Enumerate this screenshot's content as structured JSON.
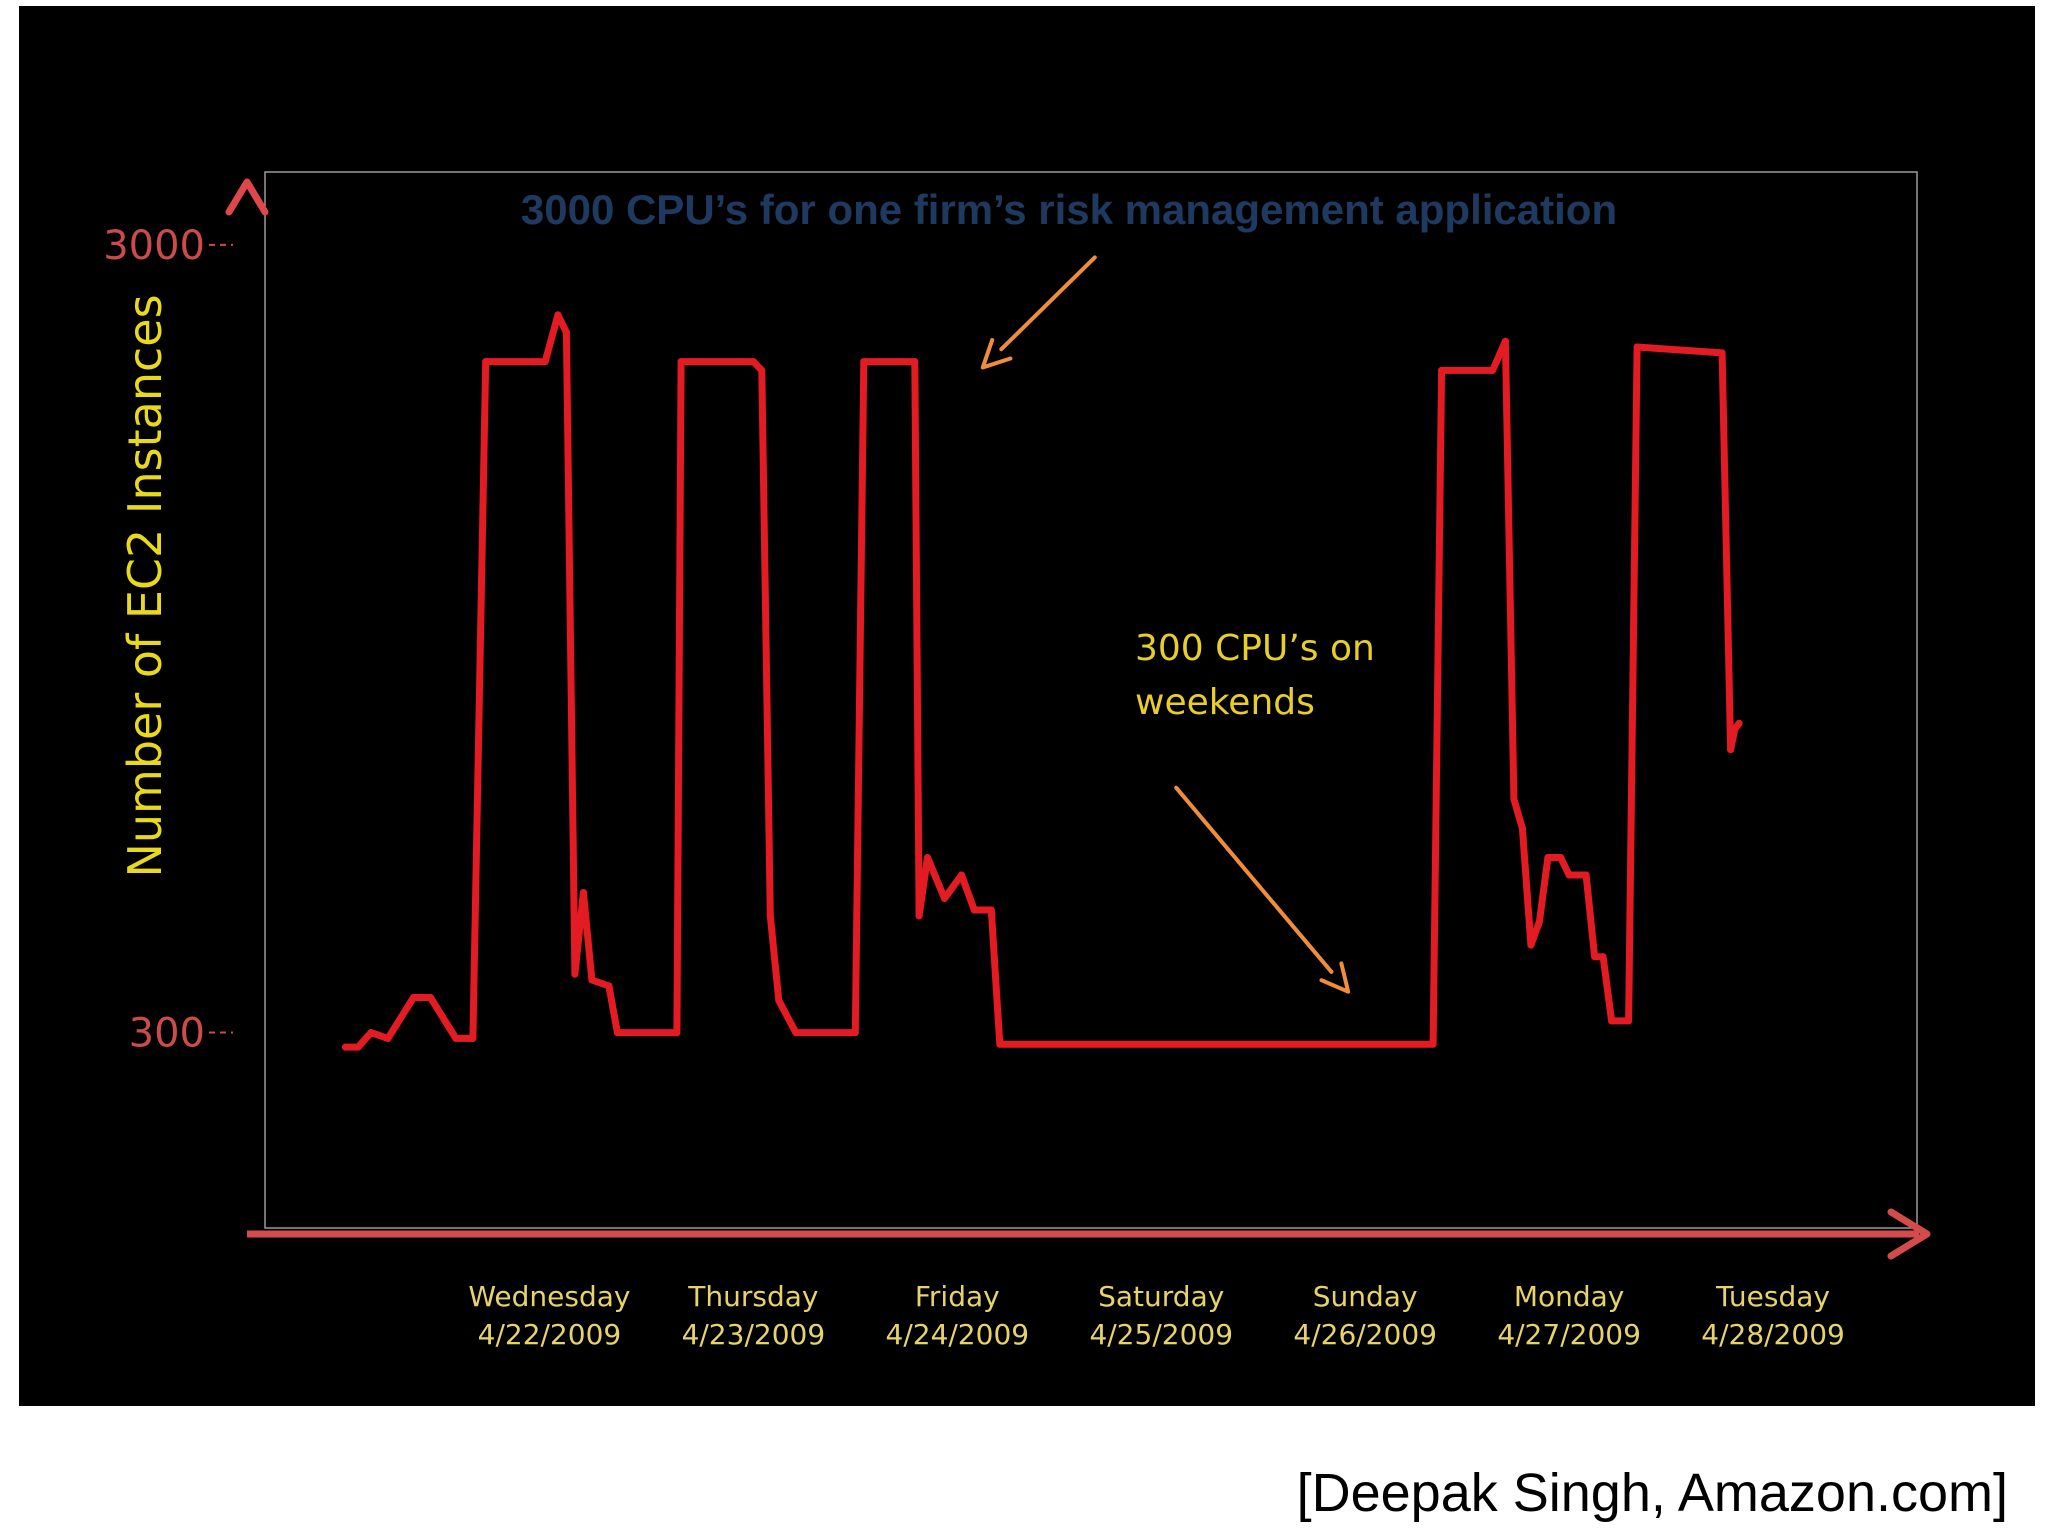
{
  "chart_data": {
    "type": "line",
    "title": "3000 CPU’s for one firm’s risk management application",
    "ylabel": "Number of EC2 Instances",
    "xlabel": "",
    "x_ticks": [
      {
        "day": "Wednesday",
        "date": "4/22/2009"
      },
      {
        "day": "Thursday",
        "date": "4/23/2009"
      },
      {
        "day": "Friday",
        "date": "4/24/2009"
      },
      {
        "day": "Saturday",
        "date": "4/25/2009"
      },
      {
        "day": "Sunday",
        "date": "4/26/2009"
      },
      {
        "day": "Monday",
        "date": "4/27/2009"
      },
      {
        "day": "Tuesday",
        "date": "4/28/2009"
      }
    ],
    "y_ticks": [
      "3000",
      "300"
    ],
    "y_tick_values": [
      3000,
      300
    ],
    "ylim": [
      -370,
      3250
    ],
    "xlim": [
      "2009-04-21 03:00",
      "2009-04-29 04:00"
    ],
    "grid": false,
    "annotations": [
      {
        "text_lines": [
          "300 CPU’s on",
          "weekends"
        ],
        "arrow_tip": {
          "x": "2009-04-26 10:00",
          "y": 440
        }
      },
      {
        "arrow_tip": {
          "x": "2009-04-24 15:00",
          "y": 2580
        }
      }
    ],
    "series": [
      {
        "color": "#e31b23",
        "points": [
          [
            "2009-04-21 12:00",
            250
          ],
          [
            "2009-04-21 13:30",
            250
          ],
          [
            "2009-04-21 15:00",
            300
          ],
          [
            "2009-04-21 17:00",
            280
          ],
          [
            "2009-04-21 20:00",
            420
          ],
          [
            "2009-04-21 22:00",
            420
          ],
          [
            "2009-04-22 01:00",
            280
          ],
          [
            "2009-04-22 03:00",
            280
          ],
          [
            "2009-04-22 04:30",
            2600
          ],
          [
            "2009-04-22 11:30",
            2600
          ],
          [
            "2009-04-22 13:00",
            2760
          ],
          [
            "2009-04-22 14:00",
            2700
          ],
          [
            "2009-04-22 15:00",
            500
          ],
          [
            "2009-04-22 16:00",
            780
          ],
          [
            "2009-04-22 17:00",
            480
          ],
          [
            "2009-04-22 19:00",
            460
          ],
          [
            "2009-04-22 20:00",
            300
          ],
          [
            "2009-04-23 03:00",
            300
          ],
          [
            "2009-04-23 03:30",
            2600
          ],
          [
            "2009-04-23 12:00",
            2600
          ],
          [
            "2009-04-23 13:00",
            2570
          ],
          [
            "2009-04-23 14:00",
            700
          ],
          [
            "2009-04-23 15:00",
            410
          ],
          [
            "2009-04-23 17:00",
            300
          ],
          [
            "2009-04-24 00:00",
            300
          ],
          [
            "2009-04-24 01:00",
            2600
          ],
          [
            "2009-04-24 07:00",
            2600
          ],
          [
            "2009-04-24 07:30",
            700
          ],
          [
            "2009-04-24 08:30",
            900
          ],
          [
            "2009-04-24 10:30",
            760
          ],
          [
            "2009-04-24 12:30",
            840
          ],
          [
            "2009-04-24 14:00",
            720
          ],
          [
            "2009-04-24 16:00",
            720
          ],
          [
            "2009-04-24 17:00",
            260
          ],
          [
            "2009-04-26 20:00",
            260
          ],
          [
            "2009-04-26 21:00",
            2570
          ],
          [
            "2009-04-27 03:00",
            2570
          ],
          [
            "2009-04-27 04:30",
            2670
          ],
          [
            "2009-04-27 05:30",
            1100
          ],
          [
            "2009-04-27 06:30",
            1000
          ],
          [
            "2009-04-27 07:30",
            600
          ],
          [
            "2009-04-27 08:30",
            680
          ],
          [
            "2009-04-27 09:30",
            900
          ],
          [
            "2009-04-27 11:00",
            900
          ],
          [
            "2009-04-27 12:00",
            840
          ],
          [
            "2009-04-27 14:00",
            840
          ],
          [
            "2009-04-27 15:00",
            560
          ],
          [
            "2009-04-27 16:00",
            560
          ],
          [
            "2009-04-27 17:00",
            340
          ],
          [
            "2009-04-27 19:00",
            340
          ],
          [
            "2009-04-27 20:00",
            2650
          ],
          [
            "2009-04-28 06:00",
            2630
          ],
          [
            "2009-04-28 07:00",
            1270
          ],
          [
            "2009-04-28 07:30",
            1340
          ],
          [
            "2009-04-28 08:00",
            1360
          ]
        ]
      }
    ]
  },
  "colors": {
    "background": "#000000",
    "series": "#e31b23",
    "axis": "#d44b4b",
    "title": "#1f3a60",
    "ylabel": "#e8d91a",
    "ytick": "#cc4b4b",
    "xtick": "#e6d46a",
    "annotation_text": "#e8cf28",
    "annotation_arrow": "#f08d3a",
    "frame": "#9a9a9a",
    "credit": "#000000"
  },
  "credit": "[Deepak Singh, Amazon.com]"
}
